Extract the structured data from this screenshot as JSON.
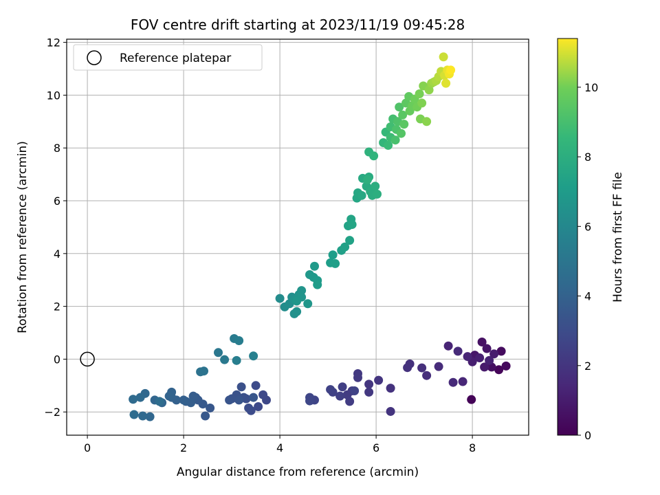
{
  "chart_data": {
    "type": "scatter",
    "title": "FOV centre drift starting at 2023/11/19 09:45:28",
    "xlabel": "Angular distance from reference (arcmin)",
    "ylabel": "Rotation from reference (arcmin)",
    "xlim": [
      -0.43,
      9.17
    ],
    "ylim": [
      -2.88,
      12.12
    ],
    "x_ticks": [
      0,
      2,
      4,
      6,
      8
    ],
    "y_ticks": [
      -2,
      0,
      2,
      4,
      6,
      8,
      10,
      12
    ],
    "grid": true,
    "legend": {
      "position": "top-left",
      "entries": [
        "Reference platepar"
      ]
    },
    "reference_point": {
      "x": 0,
      "y": 0,
      "label": "Reference platepar"
    },
    "colorbar": {
      "label": "Hours from first FF file",
      "colormap": "viridis",
      "range": [
        0,
        11.4
      ],
      "ticks": [
        0,
        2,
        4,
        6,
        8,
        10
      ]
    },
    "points": [
      {
        "x": 7.98,
        "y": -1.53,
        "h": 0.1
      },
      {
        "x": 8.55,
        "y": -0.4,
        "h": 0.2
      },
      {
        "x": 8.7,
        "y": -0.26,
        "h": 0.3
      },
      {
        "x": 8.6,
        "y": 0.3,
        "h": 0.4
      },
      {
        "x": 8.4,
        "y": -0.3,
        "h": 0.5
      },
      {
        "x": 8.2,
        "y": 0.65,
        "h": 0.6
      },
      {
        "x": 8.3,
        "y": 0.4,
        "h": 0.7
      },
      {
        "x": 8.05,
        "y": 0.15,
        "h": 0.8
      },
      {
        "x": 8.25,
        "y": -0.3,
        "h": 0.9
      },
      {
        "x": 8.45,
        "y": 0.2,
        "h": 1.0
      },
      {
        "x": 8.0,
        "y": -0.1,
        "h": 1.1
      },
      {
        "x": 8.15,
        "y": 0.05,
        "h": 1.15
      },
      {
        "x": 8.35,
        "y": -0.05,
        "h": 1.2
      },
      {
        "x": 7.5,
        "y": 0.5,
        "h": 1.3
      },
      {
        "x": 7.9,
        "y": 0.1,
        "h": 1.35
      },
      {
        "x": 7.8,
        "y": -0.85,
        "h": 1.4
      },
      {
        "x": 7.6,
        "y": -0.88,
        "h": 1.5
      },
      {
        "x": 7.7,
        "y": 0.3,
        "h": 1.55
      },
      {
        "x": 7.3,
        "y": -0.28,
        "h": 1.6
      },
      {
        "x": 7.05,
        "y": -0.62,
        "h": 1.7
      },
      {
        "x": 6.95,
        "y": -0.33,
        "h": 1.75
      },
      {
        "x": 6.7,
        "y": -0.18,
        "h": 1.8
      },
      {
        "x": 6.65,
        "y": -0.32,
        "h": 1.85
      },
      {
        "x": 6.3,
        "y": -1.1,
        "h": 1.9
      },
      {
        "x": 6.3,
        "y": -1.98,
        "h": 1.95
      },
      {
        "x": 6.05,
        "y": -0.8,
        "h": 2.0
      },
      {
        "x": 5.85,
        "y": -0.95,
        "h": 2.05
      },
      {
        "x": 5.85,
        "y": -1.25,
        "h": 2.1
      },
      {
        "x": 5.62,
        "y": -0.55,
        "h": 2.15
      },
      {
        "x": 5.62,
        "y": -0.7,
        "h": 2.2
      },
      {
        "x": 5.5,
        "y": -1.2,
        "h": 2.25
      },
      {
        "x": 5.4,
        "y": -1.35,
        "h": 2.3
      },
      {
        "x": 5.45,
        "y": -1.6,
        "h": 2.35
      },
      {
        "x": 5.3,
        "y": -1.05,
        "h": 2.4
      },
      {
        "x": 5.25,
        "y": -1.4,
        "h": 2.45
      },
      {
        "x": 5.1,
        "y": -1.25,
        "h": 2.5
      },
      {
        "x": 5.05,
        "y": -1.15,
        "h": 2.55
      },
      {
        "x": 5.55,
        "y": -1.2,
        "h": 2.6
      },
      {
        "x": 4.72,
        "y": -1.55,
        "h": 2.65
      },
      {
        "x": 4.62,
        "y": -1.45,
        "h": 2.7
      },
      {
        "x": 4.62,
        "y": -1.58,
        "h": 2.75
      },
      {
        "x": 3.72,
        "y": -1.55,
        "h": 2.8
      },
      {
        "x": 3.65,
        "y": -1.35,
        "h": 2.85
      },
      {
        "x": 3.55,
        "y": -1.8,
        "h": 2.9
      },
      {
        "x": 3.5,
        "y": -1.0,
        "h": 2.95
      },
      {
        "x": 3.4,
        "y": -1.95,
        "h": 3.0
      },
      {
        "x": 3.35,
        "y": -1.85,
        "h": 3.05
      },
      {
        "x": 3.3,
        "y": -1.5,
        "h": 3.1
      },
      {
        "x": 3.25,
        "y": -1.45,
        "h": 3.15
      },
      {
        "x": 3.2,
        "y": -1.05,
        "h": 3.2
      },
      {
        "x": 3.1,
        "y": -1.35,
        "h": 3.25
      },
      {
        "x": 3.0,
        "y": -1.5,
        "h": 3.3
      },
      {
        "x": 2.95,
        "y": -1.55,
        "h": 3.35
      },
      {
        "x": 3.15,
        "y": -1.55,
        "h": 3.4
      },
      {
        "x": 3.45,
        "y": -1.45,
        "h": 3.45
      },
      {
        "x": 2.55,
        "y": -1.85,
        "h": 3.5
      },
      {
        "x": 2.45,
        "y": -2.15,
        "h": 3.55
      },
      {
        "x": 2.4,
        "y": -1.7,
        "h": 3.6
      },
      {
        "x": 2.3,
        "y": -1.55,
        "h": 3.65
      },
      {
        "x": 2.25,
        "y": -1.45,
        "h": 3.7
      },
      {
        "x": 2.2,
        "y": -1.4,
        "h": 3.75
      },
      {
        "x": 2.15,
        "y": -1.65,
        "h": 3.8
      },
      {
        "x": 2.05,
        "y": -1.6,
        "h": 3.85
      },
      {
        "x": 2.0,
        "y": -1.55,
        "h": 3.9
      },
      {
        "x": 1.85,
        "y": -1.55,
        "h": 3.95
      },
      {
        "x": 1.75,
        "y": -1.45,
        "h": 4.0
      },
      {
        "x": 1.75,
        "y": -1.25,
        "h": 4.05
      },
      {
        "x": 1.7,
        "y": -1.4,
        "h": 4.1
      },
      {
        "x": 1.55,
        "y": -1.65,
        "h": 4.15
      },
      {
        "x": 1.4,
        "y": -1.55,
        "h": 4.2
      },
      {
        "x": 1.3,
        "y": -2.18,
        "h": 4.25
      },
      {
        "x": 1.2,
        "y": -1.3,
        "h": 4.3
      },
      {
        "x": 1.15,
        "y": -2.15,
        "h": 4.35
      },
      {
        "x": 1.1,
        "y": -1.45,
        "h": 4.4
      },
      {
        "x": 0.95,
        "y": -1.52,
        "h": 4.45
      },
      {
        "x": 0.97,
        "y": -2.1,
        "h": 4.5
      },
      {
        "x": 1.5,
        "y": -1.6,
        "h": 4.55
      },
      {
        "x": 2.35,
        "y": -0.48,
        "h": 4.8
      },
      {
        "x": 2.42,
        "y": -0.45,
        "h": 4.9
      },
      {
        "x": 2.72,
        "y": 0.25,
        "h": 5.1
      },
      {
        "x": 2.85,
        "y": -0.02,
        "h": 5.2
      },
      {
        "x": 3.05,
        "y": 0.78,
        "h": 5.3
      },
      {
        "x": 3.15,
        "y": 0.7,
        "h": 5.4
      },
      {
        "x": 3.1,
        "y": -0.05,
        "h": 5.5
      },
      {
        "x": 3.45,
        "y": 0.12,
        "h": 5.6
      },
      {
        "x": 4.0,
        "y": 2.3,
        "h": 6.2
      },
      {
        "x": 4.1,
        "y": 1.98,
        "h": 6.25
      },
      {
        "x": 4.2,
        "y": 2.1,
        "h": 6.3
      },
      {
        "x": 4.25,
        "y": 2.35,
        "h": 6.35
      },
      {
        "x": 4.3,
        "y": 1.72,
        "h": 6.4
      },
      {
        "x": 4.35,
        "y": 1.8,
        "h": 6.45
      },
      {
        "x": 4.3,
        "y": 2.25,
        "h": 6.5
      },
      {
        "x": 4.4,
        "y": 2.45,
        "h": 6.55
      },
      {
        "x": 4.45,
        "y": 2.6,
        "h": 6.6
      },
      {
        "x": 4.45,
        "y": 2.35,
        "h": 6.65
      },
      {
        "x": 4.58,
        "y": 2.1,
        "h": 6.7
      },
      {
        "x": 4.35,
        "y": 2.2,
        "h": 6.72
      },
      {
        "x": 4.62,
        "y": 3.2,
        "h": 6.8
      },
      {
        "x": 4.7,
        "y": 3.1,
        "h": 6.85
      },
      {
        "x": 4.72,
        "y": 3.52,
        "h": 6.9
      },
      {
        "x": 4.78,
        "y": 2.98,
        "h": 6.95
      },
      {
        "x": 4.78,
        "y": 2.82,
        "h": 7.0
      },
      {
        "x": 5.05,
        "y": 3.65,
        "h": 7.1
      },
      {
        "x": 5.1,
        "y": 3.95,
        "h": 7.15
      },
      {
        "x": 5.15,
        "y": 3.62,
        "h": 7.2
      },
      {
        "x": 5.28,
        "y": 4.12,
        "h": 7.25
      },
      {
        "x": 5.35,
        "y": 4.25,
        "h": 7.3
      },
      {
        "x": 5.45,
        "y": 4.5,
        "h": 7.35
      },
      {
        "x": 5.42,
        "y": 5.05,
        "h": 7.4
      },
      {
        "x": 5.48,
        "y": 5.3,
        "h": 7.45
      },
      {
        "x": 5.5,
        "y": 5.1,
        "h": 7.5
      },
      {
        "x": 5.6,
        "y": 6.1,
        "h": 7.6
      },
      {
        "x": 5.62,
        "y": 6.3,
        "h": 7.65
      },
      {
        "x": 5.7,
        "y": 6.2,
        "h": 7.7
      },
      {
        "x": 5.72,
        "y": 6.85,
        "h": 7.75
      },
      {
        "x": 5.8,
        "y": 6.55,
        "h": 7.8
      },
      {
        "x": 5.85,
        "y": 6.9,
        "h": 7.85
      },
      {
        "x": 5.88,
        "y": 6.35,
        "h": 7.9
      },
      {
        "x": 5.92,
        "y": 6.2,
        "h": 7.95
      },
      {
        "x": 5.98,
        "y": 6.55,
        "h": 8.0
      },
      {
        "x": 6.02,
        "y": 6.25,
        "h": 8.05
      },
      {
        "x": 5.82,
        "y": 6.8,
        "h": 8.1
      },
      {
        "x": 5.85,
        "y": 7.85,
        "h": 8.2
      },
      {
        "x": 5.95,
        "y": 7.7,
        "h": 8.3
      },
      {
        "x": 6.15,
        "y": 8.2,
        "h": 8.45
      },
      {
        "x": 6.2,
        "y": 8.6,
        "h": 8.55
      },
      {
        "x": 6.25,
        "y": 8.1,
        "h": 8.65
      },
      {
        "x": 6.3,
        "y": 8.4,
        "h": 8.75
      },
      {
        "x": 6.3,
        "y": 8.8,
        "h": 8.85
      },
      {
        "x": 6.35,
        "y": 9.1,
        "h": 8.95
      },
      {
        "x": 6.4,
        "y": 8.3,
        "h": 9.05
      },
      {
        "x": 6.42,
        "y": 8.7,
        "h": 9.15
      },
      {
        "x": 6.45,
        "y": 9.0,
        "h": 9.2
      },
      {
        "x": 6.48,
        "y": 9.55,
        "h": 9.25
      },
      {
        "x": 6.52,
        "y": 8.55,
        "h": 9.35
      },
      {
        "x": 6.55,
        "y": 9.25,
        "h": 9.45
      },
      {
        "x": 6.58,
        "y": 8.9,
        "h": 9.5
      },
      {
        "x": 6.62,
        "y": 9.7,
        "h": 9.55
      },
      {
        "x": 6.68,
        "y": 9.95,
        "h": 9.65
      },
      {
        "x": 6.7,
        "y": 9.4,
        "h": 9.75
      },
      {
        "x": 6.75,
        "y": 9.6,
        "h": 9.85
      },
      {
        "x": 6.8,
        "y": 9.85,
        "h": 9.95
      },
      {
        "x": 6.85,
        "y": 9.55,
        "h": 10.0
      },
      {
        "x": 6.9,
        "y": 10.05,
        "h": 10.05
      },
      {
        "x": 6.92,
        "y": 9.1,
        "h": 10.1
      },
      {
        "x": 6.95,
        "y": 9.7,
        "h": 10.15
      },
      {
        "x": 6.98,
        "y": 10.35,
        "h": 10.2
      },
      {
        "x": 7.05,
        "y": 9.0,
        "h": 10.25
      },
      {
        "x": 7.1,
        "y": 10.2,
        "h": 10.3
      },
      {
        "x": 7.15,
        "y": 10.45,
        "h": 10.4
      },
      {
        "x": 7.2,
        "y": 10.5,
        "h": 10.5
      },
      {
        "x": 7.25,
        "y": 10.55,
        "h": 10.6
      },
      {
        "x": 7.3,
        "y": 10.7,
        "h": 10.7
      },
      {
        "x": 7.35,
        "y": 10.9,
        "h": 10.8
      },
      {
        "x": 7.4,
        "y": 11.45,
        "h": 10.9
      },
      {
        "x": 7.42,
        "y": 10.75,
        "h": 11.0
      },
      {
        "x": 7.45,
        "y": 10.45,
        "h": 11.1
      },
      {
        "x": 7.48,
        "y": 10.95,
        "h": 11.2
      },
      {
        "x": 7.52,
        "y": 10.8,
        "h": 11.3
      },
      {
        "x": 7.55,
        "y": 10.95,
        "h": 11.4
      }
    ]
  }
}
